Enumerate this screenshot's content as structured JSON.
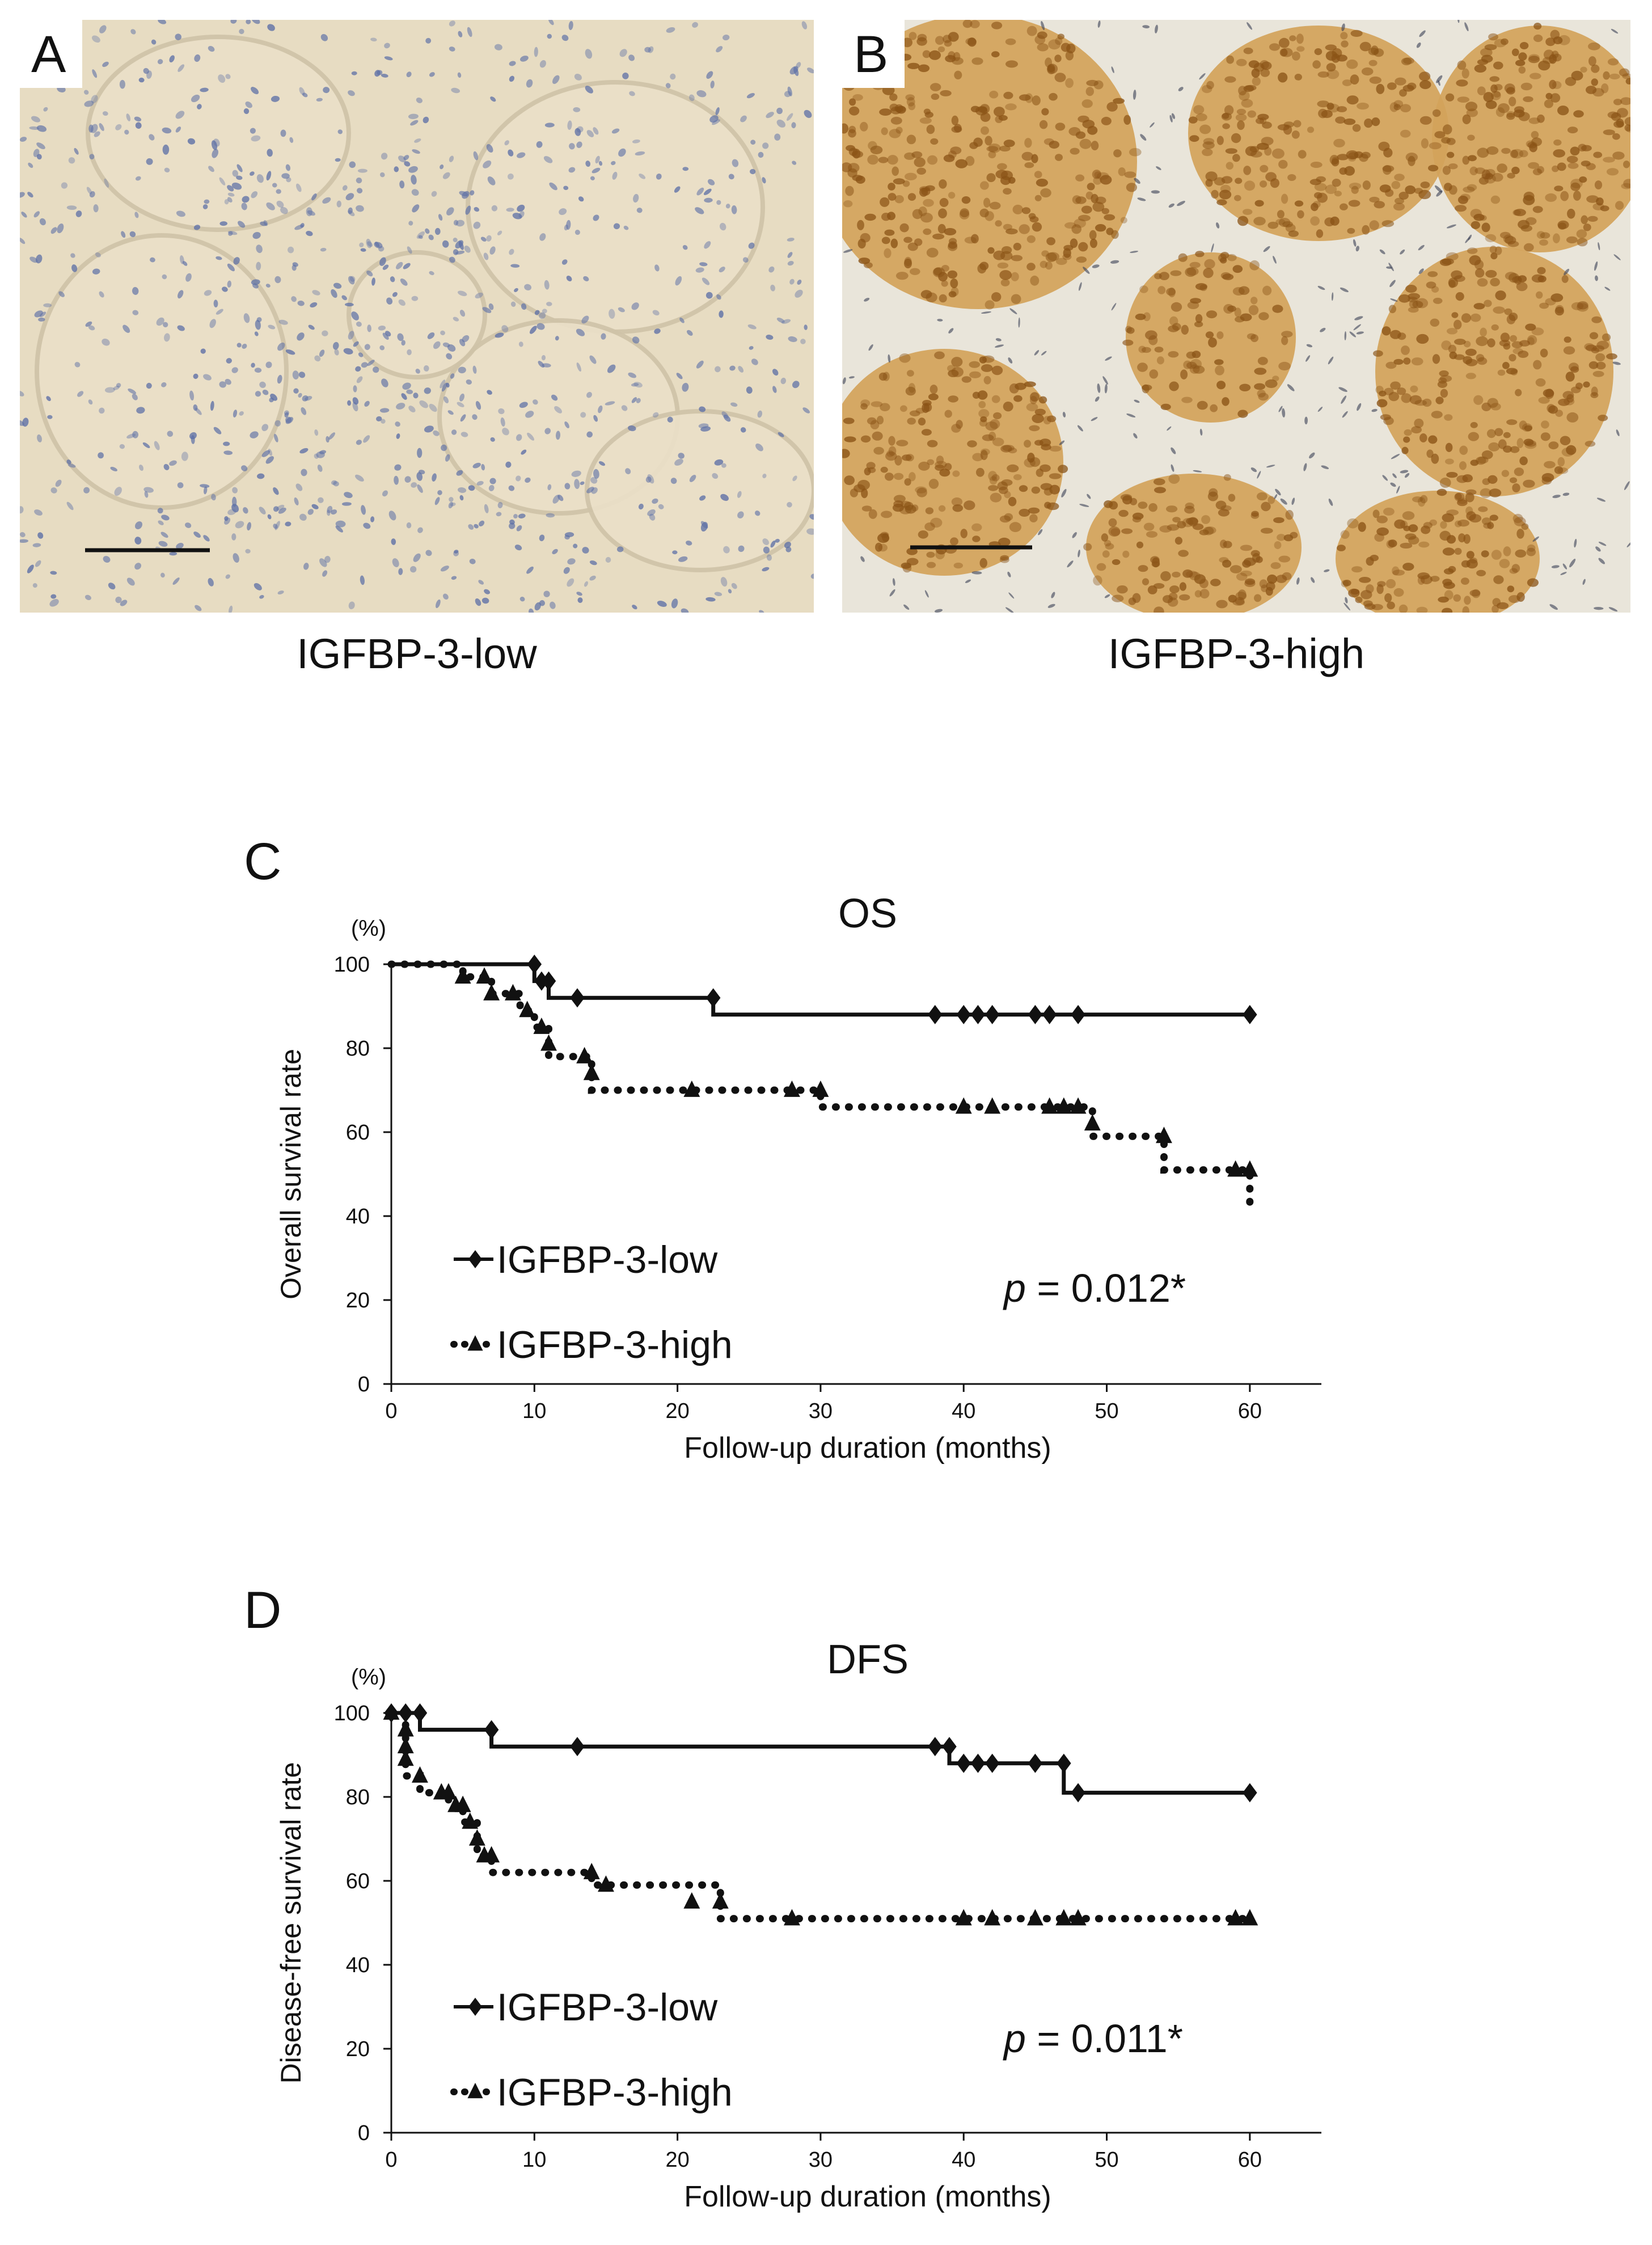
{
  "panels": {
    "A": {
      "letter": "A",
      "caption": "IGFBP-3-low"
    },
    "B": {
      "letter": "B",
      "caption": "IGFBP-3-high"
    }
  },
  "colors": {
    "low_tissue": "#e7dcc2",
    "low_nuclei": "#5c6fa6",
    "high_tissue": "#d3a35a",
    "high_stroma": "#e9e5da",
    "high_nuclei": "#8a5316",
    "line": "#111111"
  },
  "chart_data": [
    {
      "panel_letter": "C",
      "type": "line",
      "title": "OS",
      "ylabel": "Overall survival rate",
      "y_unit": "(%)",
      "xlabel": "Follow-up duration (months)",
      "xlim": [
        0,
        65
      ],
      "ylim": [
        0,
        100
      ],
      "xticks": [
        0,
        10,
        20,
        30,
        40,
        50,
        60
      ],
      "yticks": [
        0,
        20,
        40,
        60,
        80,
        100
      ],
      "annotation": {
        "p": "p",
        "rest": " = 0.012*"
      },
      "series": [
        {
          "name": "IGFBP-3-low",
          "marker": "diamond",
          "style": "solid",
          "x": [
            0,
            10,
            10,
            11,
            11,
            22.5,
            22.5,
            60
          ],
          "y": [
            100,
            100,
            96,
            96,
            92,
            92,
            88,
            88
          ],
          "censored_x": [
            10,
            10.5,
            11,
            13,
            22.5,
            38,
            40,
            41,
            42,
            45,
            46,
            48,
            60
          ],
          "censored_y": [
            100,
            96,
            96,
            92,
            92,
            88,
            88,
            88,
            88,
            88,
            88,
            88,
            88
          ]
        },
        {
          "name": "IGFBP-3-high",
          "marker": "triangle",
          "style": "dotted",
          "x": [
            0,
            5,
            5,
            7,
            7,
            9,
            9,
            10,
            10,
            11,
            11,
            14,
            14,
            30,
            30,
            49,
            49,
            54,
            54,
            60,
            60
          ],
          "y": [
            100,
            100,
            97,
            97,
            93,
            93,
            89,
            89,
            85,
            85,
            78,
            78,
            70,
            70,
            66,
            66,
            59,
            59,
            51,
            51,
            43
          ],
          "censored_x": [
            5,
            6.5,
            7,
            8.5,
            9.5,
            10.5,
            11,
            13.5,
            14,
            21,
            28,
            30,
            40,
            42,
            46,
            47,
            48,
            49,
            54,
            59,
            60
          ],
          "censored_y": [
            97,
            97,
            93,
            93,
            89,
            85,
            81,
            78,
            74,
            70,
            70,
            70,
            66,
            66,
            66,
            66,
            66,
            62,
            59,
            51,
            51
          ]
        }
      ]
    },
    {
      "panel_letter": "D",
      "type": "line",
      "title": "DFS",
      "ylabel": "Disease-free survival rate",
      "y_unit": "(%)",
      "xlabel": "Follow-up duration (months)",
      "xlim": [
        0,
        65
      ],
      "ylim": [
        0,
        100
      ],
      "xticks": [
        0,
        10,
        20,
        30,
        40,
        50,
        60
      ],
      "yticks": [
        0,
        20,
        40,
        60,
        80,
        100
      ],
      "annotation": {
        "p": "p",
        "rest": " = 0.011*"
      },
      "series": [
        {
          "name": "IGFBP-3-low",
          "marker": "diamond",
          "style": "solid",
          "x": [
            0,
            2,
            2,
            7,
            7,
            39,
            39,
            47,
            47,
            60
          ],
          "y": [
            100,
            100,
            96,
            96,
            92,
            92,
            88,
            88,
            81,
            81
          ],
          "censored_x": [
            0,
            1,
            2,
            7,
            13,
            38,
            39,
            40,
            41,
            42,
            45,
            47,
            48,
            60
          ],
          "censored_y": [
            100,
            100,
            100,
            96,
            92,
            92,
            92,
            88,
            88,
            88,
            88,
            88,
            81,
            81
          ],
          "censored_x_note": ""
        },
        {
          "name": "IGFBP-3-high",
          "marker": "triangle",
          "style": "dotted",
          "x": [
            0,
            1,
            1,
            2,
            2,
            4,
            4,
            5,
            5,
            6,
            6,
            7,
            7,
            14,
            14,
            23,
            23,
            60
          ],
          "y": [
            100,
            100,
            85,
            85,
            81,
            81,
            78,
            78,
            74,
            74,
            66,
            66,
            62,
            62,
            59,
            59,
            51,
            51
          ],
          "censored_x": [
            0,
            1,
            1,
            1,
            2,
            3.5,
            4,
            4.5,
            5,
            5.5,
            6,
            6.5,
            7,
            14,
            15,
            21,
            23,
            28,
            40,
            42,
            45,
            47,
            48,
            59,
            60
          ],
          "censored_y": [
            100,
            96,
            92,
            89,
            85,
            81,
            81,
            78,
            78,
            74,
            70,
            66,
            66,
            62,
            59,
            55,
            55,
            51,
            51,
            51,
            51,
            51,
            51,
            51,
            51
          ]
        }
      ]
    }
  ]
}
